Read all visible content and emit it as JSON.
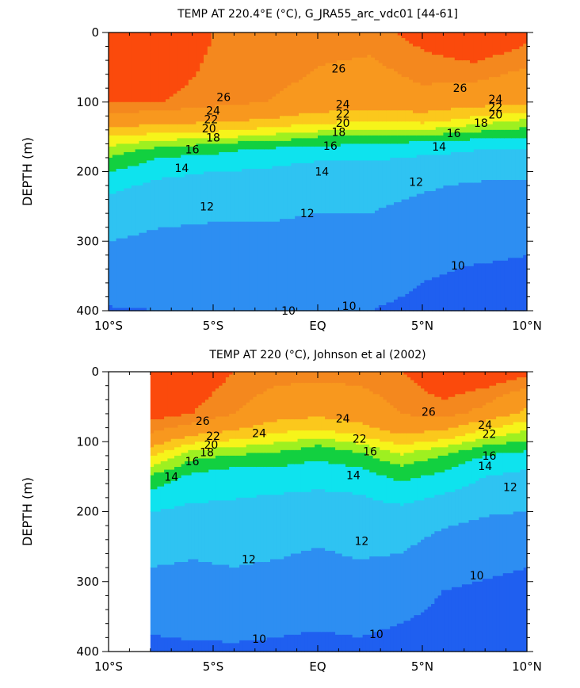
{
  "chart_data": [
    {
      "type": "heatmap",
      "subtype": "filled-contour",
      "title": "TEMP AT 220.4°E (°C), G_JRA55_arc_vdc01 [44-61]",
      "ylabel": "DEPTH (m)",
      "xlim": [
        -10,
        10
      ],
      "ylim": [
        400,
        0
      ],
      "x_ticks": [
        {
          "value": -10,
          "label": "10°S"
        },
        {
          "value": -5,
          "label": "5°S"
        },
        {
          "value": 0,
          "label": "EQ"
        },
        {
          "value": 5,
          "label": "5°N"
        },
        {
          "value": 10,
          "label": "10°N"
        }
      ],
      "y_ticks": [
        {
          "value": 0,
          "label": "0"
        },
        {
          "value": 100,
          "label": "100"
        },
        {
          "value": 200,
          "label": "200"
        },
        {
          "value": 300,
          "label": "300"
        },
        {
          "value": 400,
          "label": "400"
        }
      ],
      "data_extent_x": [
        -10,
        10
      ],
      "color_scale": [
        {
          "max_temp": 10,
          "color": "#1f5ff0"
        },
        {
          "max_temp": 12,
          "color": "#2d8ef2"
        },
        {
          "max_temp": 14,
          "color": "#2fc3f2"
        },
        {
          "max_temp": 16,
          "color": "#0ee3ee"
        },
        {
          "max_temp": 18,
          "color": "#12d040"
        },
        {
          "max_temp": 20,
          "color": "#9ef020"
        },
        {
          "max_temp": 22,
          "color": "#f6f41a"
        },
        {
          "max_temp": 24,
          "color": "#fbc81c"
        },
        {
          "max_temp": 26,
          "color": "#f8981e"
        },
        {
          "max_temp": 27,
          "color": "#f4881e"
        },
        {
          "max_temp": 99,
          "color": "#fb4a0c"
        }
      ],
      "depths": [
        0,
        100,
        125,
        140,
        150,
        160,
        170,
        185,
        200,
        220,
        260,
        300,
        340,
        380,
        400
      ],
      "profiles": [
        {
          "x": -10,
          "temps": [
            29.0,
            27.0,
            25.5,
            23.5,
            22.0,
            20.5,
            19.0,
            17.5,
            16.0,
            14.5,
            13.0,
            12.0,
            11.0,
            10.2,
            9.9
          ]
        },
        {
          "x": -7.5,
          "temps": [
            28.5,
            27.0,
            25.0,
            23.0,
            21.0,
            19.0,
            17.0,
            15.5,
            14.5,
            13.5,
            12.4,
            11.6,
            11.0,
            10.3,
            10.0
          ]
        },
        {
          "x": -5,
          "temps": [
            27.0,
            26.5,
            24.5,
            22.5,
            20.5,
            18.0,
            16.5,
            15.0,
            14.0,
            13.2,
            12.2,
            11.6,
            11.0,
            10.3,
            10.0
          ]
        },
        {
          "x": -2.5,
          "temps": [
            27.0,
            26.0,
            24.0,
            21.5,
            19.5,
            17.0,
            15.5,
            14.5,
            13.8,
            13.0,
            12.2,
            11.6,
            11.0,
            10.4,
            10.1
          ]
        },
        {
          "x": 0,
          "temps": [
            26.5,
            25.5,
            23.0,
            20.5,
            18.0,
            16.5,
            15.0,
            14.0,
            13.2,
            12.6,
            12.0,
            11.5,
            11.0,
            10.4,
            10.1
          ]
        },
        {
          "x": 2.5,
          "temps": [
            26.5,
            25.0,
            22.5,
            20.0,
            17.5,
            16.0,
            14.8,
            14.0,
            13.3,
            12.6,
            12.0,
            11.5,
            11.0,
            10.3,
            10.0
          ]
        },
        {
          "x": 5,
          "temps": [
            27.5,
            25.5,
            23.0,
            20.0,
            17.5,
            15.5,
            14.5,
            13.5,
            12.8,
            12.2,
            11.5,
            10.8,
            10.2,
            9.8,
            9.5
          ]
        },
        {
          "x": 7.5,
          "temps": [
            28.5,
            25.0,
            21.5,
            18.5,
            16.5,
            15.0,
            14.0,
            13.2,
            12.5,
            11.8,
            11.2,
            10.5,
            9.9,
            9.5,
            9.3
          ]
        },
        {
          "x": 10,
          "temps": [
            27.5,
            24.5,
            20.0,
            17.5,
            16.0,
            14.8,
            13.8,
            13.0,
            12.4,
            11.7,
            11.0,
            10.2,
            9.8,
            9.5,
            9.2
          ]
        }
      ],
      "contour_labels": [
        {
          "text": "26",
          "x": 1.0,
          "depth": 52
        },
        {
          "text": "26",
          "x": -4.5,
          "depth": 93
        },
        {
          "text": "26",
          "x": 6.8,
          "depth": 80
        },
        {
          "text": "24",
          "x": -5.0,
          "depth": 112
        },
        {
          "text": "24",
          "x": 1.2,
          "depth": 103
        },
        {
          "text": "24",
          "x": 8.5,
          "depth": 96
        },
        {
          "text": "22",
          "x": -5.1,
          "depth": 125
        },
        {
          "text": "22",
          "x": 1.2,
          "depth": 117
        },
        {
          "text": "22",
          "x": 8.5,
          "depth": 107
        },
        {
          "text": "20",
          "x": -5.2,
          "depth": 138
        },
        {
          "text": "20",
          "x": 1.2,
          "depth": 130
        },
        {
          "text": "20",
          "x": 8.5,
          "depth": 118
        },
        {
          "text": "18",
          "x": -5.0,
          "depth": 151
        },
        {
          "text": "18",
          "x": 1.0,
          "depth": 143
        },
        {
          "text": "18",
          "x": 7.8,
          "depth": 130
        },
        {
          "text": "16",
          "x": -6.0,
          "depth": 168
        },
        {
          "text": "16",
          "x": 0.6,
          "depth": 163
        },
        {
          "text": "16",
          "x": 6.5,
          "depth": 145
        },
        {
          "text": "14",
          "x": -6.5,
          "depth": 195
        },
        {
          "text": "14",
          "x": 0.2,
          "depth": 200
        },
        {
          "text": "14",
          "x": 5.8,
          "depth": 164
        },
        {
          "text": "12",
          "x": -5.3,
          "depth": 250
        },
        {
          "text": "12",
          "x": -0.5,
          "depth": 260
        },
        {
          "text": "12",
          "x": 4.7,
          "depth": 215
        },
        {
          "text": "10",
          "x": -1.4,
          "depth": 400
        },
        {
          "text": "10",
          "x": 1.5,
          "depth": 393
        },
        {
          "text": "10",
          "x": 6.7,
          "depth": 335
        }
      ]
    },
    {
      "type": "heatmap",
      "subtype": "filled-contour",
      "title": "TEMP AT 220 (°C), Johnson et al (2002)",
      "ylabel": "DEPTH (m)",
      "xlim": [
        -10,
        10
      ],
      "ylim": [
        400,
        0
      ],
      "x_ticks": [
        {
          "value": -10,
          "label": "10°S"
        },
        {
          "value": -5,
          "label": "5°S"
        },
        {
          "value": 0,
          "label": "EQ"
        },
        {
          "value": 5,
          "label": "5°N"
        },
        {
          "value": 10,
          "label": "10°N"
        }
      ],
      "y_ticks": [
        {
          "value": 0,
          "label": "0"
        },
        {
          "value": 100,
          "label": "100"
        },
        {
          "value": 200,
          "label": "200"
        },
        {
          "value": 300,
          "label": "300"
        },
        {
          "value": 400,
          "label": "400"
        }
      ],
      "data_extent_x": [
        -8,
        10
      ],
      "color_scale": [
        {
          "max_temp": 10,
          "color": "#1f5ff0"
        },
        {
          "max_temp": 12,
          "color": "#2d8ef2"
        },
        {
          "max_temp": 14,
          "color": "#2fc3f2"
        },
        {
          "max_temp": 16,
          "color": "#0ee3ee"
        },
        {
          "max_temp": 18,
          "color": "#12d040"
        },
        {
          "max_temp": 20,
          "color": "#9ef020"
        },
        {
          "max_temp": 22,
          "color": "#f6f41a"
        },
        {
          "max_temp": 24,
          "color": "#fbc81c"
        },
        {
          "max_temp": 26,
          "color": "#f8981e"
        },
        {
          "max_temp": 27,
          "color": "#f4881e"
        },
        {
          "max_temp": 99,
          "color": "#fb4a0c"
        }
      ],
      "depths": [
        0,
        60,
        80,
        95,
        105,
        115,
        130,
        150,
        175,
        200,
        240,
        280,
        320,
        360,
        400
      ],
      "profiles": [
        {
          "x": -8,
          "temps": [
            28.5,
            27.5,
            26.5,
            25.5,
            24.5,
            23.0,
            21.0,
            17.5,
            15.5,
            14.0,
            12.8,
            12.0,
            11.2,
            10.2,
            9.7
          ]
        },
        {
          "x": -6,
          "temps": [
            28.0,
            27.0,
            25.5,
            23.5,
            21.5,
            19.5,
            17.5,
            15.5,
            14.5,
            13.5,
            12.5,
            11.8,
            11.0,
            10.3,
            9.8
          ]
        },
        {
          "x": -4,
          "temps": [
            27.0,
            26.0,
            24.5,
            22.5,
            20.5,
            18.5,
            16.5,
            15.0,
            14.2,
            13.5,
            12.6,
            12.0,
            11.2,
            10.4,
            9.8
          ]
        },
        {
          "x": -2,
          "temps": [
            26.5,
            25.0,
            23.0,
            21.0,
            19.5,
            18.0,
            16.5,
            15.0,
            14.0,
            13.2,
            12.5,
            11.8,
            11.0,
            10.2,
            9.8
          ]
        },
        {
          "x": 0,
          "temps": [
            26.5,
            24.5,
            22.5,
            20.0,
            18.0,
            17.0,
            15.8,
            14.6,
            13.8,
            13.0,
            12.2,
            11.5,
            10.8,
            10.1,
            9.7
          ]
        },
        {
          "x": 2,
          "temps": [
            26.5,
            25.0,
            23.5,
            21.5,
            19.5,
            18.0,
            16.5,
            15.0,
            14.0,
            13.3,
            12.5,
            11.8,
            11.0,
            10.2,
            9.8
          ]
        },
        {
          "x": 4,
          "temps": [
            27.0,
            26.0,
            25.0,
            23.5,
            22.0,
            20.5,
            18.5,
            16.5,
            14.8,
            13.5,
            12.5,
            11.5,
            10.8,
            10.0,
            9.6
          ]
        },
        {
          "x": 6,
          "temps": [
            28.0,
            26.5,
            24.5,
            22.5,
            20.5,
            18.5,
            17.0,
            15.5,
            14.0,
            12.8,
            11.5,
            10.5,
            9.9,
            9.5,
            9.2
          ]
        },
        {
          "x": 8,
          "temps": [
            28.0,
            25.5,
            22.5,
            20.0,
            18.0,
            16.5,
            15.0,
            14.0,
            13.0,
            12.2,
            11.0,
            10.2,
            9.7,
            9.4,
            9.1
          ]
        },
        {
          "x": 10,
          "temps": [
            27.5,
            23.5,
            20.5,
            18.5,
            17.0,
            15.8,
            14.5,
            13.5,
            12.8,
            12.0,
            10.8,
            10.0,
            9.6,
            9.3,
            9.0
          ]
        }
      ],
      "contour_labels": [
        {
          "text": "26",
          "x": -5.5,
          "depth": 70
        },
        {
          "text": "26",
          "x": 5.3,
          "depth": 57
        },
        {
          "text": "24",
          "x": -2.8,
          "depth": 88
        },
        {
          "text": "24",
          "x": 1.2,
          "depth": 67
        },
        {
          "text": "22",
          "x": -5.0,
          "depth": 92
        },
        {
          "text": "22",
          "x": 2.0,
          "depth": 96
        },
        {
          "text": "20",
          "x": -5.1,
          "depth": 104
        },
        {
          "text": "18",
          "x": -5.3,
          "depth": 115
        },
        {
          "text": "16",
          "x": -6.0,
          "depth": 128
        },
        {
          "text": "16",
          "x": 2.5,
          "depth": 114
        },
        {
          "text": "14",
          "x": -7.0,
          "depth": 150
        },
        {
          "text": "14",
          "x": 1.7,
          "depth": 148
        },
        {
          "text": "12",
          "x": -3.3,
          "depth": 268
        },
        {
          "text": "12",
          "x": 2.1,
          "depth": 242
        },
        {
          "text": "12",
          "x": 9.2,
          "depth": 165
        },
        {
          "text": "14",
          "x": 8.0,
          "depth": 135
        },
        {
          "text": "16",
          "x": 8.2,
          "depth": 120
        },
        {
          "text": "10",
          "x": -2.8,
          "depth": 382
        },
        {
          "text": "10",
          "x": 2.8,
          "depth": 375
        },
        {
          "text": "10",
          "x": 7.6,
          "depth": 291
        },
        {
          "text": "24",
          "x": 8.0,
          "depth": 76
        },
        {
          "text": "22",
          "x": 8.2,
          "depth": 89
        }
      ]
    }
  ]
}
